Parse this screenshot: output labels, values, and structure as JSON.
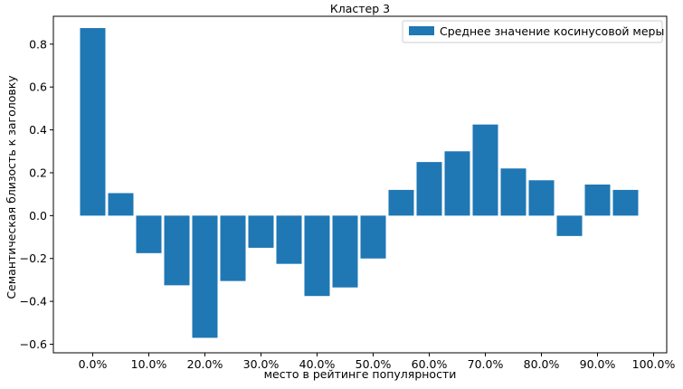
{
  "chart_data": {
    "type": "bar",
    "title": "Кластер 3",
    "xlabel": "место в рейтинге популярности",
    "ylabel": "Семантическая близость к заголовку",
    "ylim": [
      -0.64,
      0.93
    ],
    "yticks": [
      -0.6,
      -0.4,
      -0.2,
      0.0,
      0.2,
      0.4,
      0.6,
      0.8
    ],
    "ytick_labels": [
      "−0.6",
      "−0.4",
      "−0.2",
      "0.0",
      "0.2",
      "0.4",
      "0.6",
      "0.8"
    ],
    "xtick_labels": [
      "0.0%",
      "10.0%",
      "20.0%",
      "30.0%",
      "40.0%",
      "50.0%",
      "60.0%",
      "70.0%",
      "80.0%",
      "90.0%",
      "100.0%"
    ],
    "grid": false,
    "legend_position": "top-right",
    "series": [
      {
        "name": "Среднее значение косинусовой меры",
        "color": "#1f77b4",
        "values": [
          0.875,
          0.105,
          -0.175,
          -0.325,
          -0.57,
          -0.305,
          -0.15,
          -0.225,
          -0.375,
          -0.335,
          -0.2,
          0.12,
          0.25,
          0.3,
          0.425,
          0.22,
          0.165,
          -0.095,
          0.145,
          0.12
        ]
      }
    ]
  }
}
